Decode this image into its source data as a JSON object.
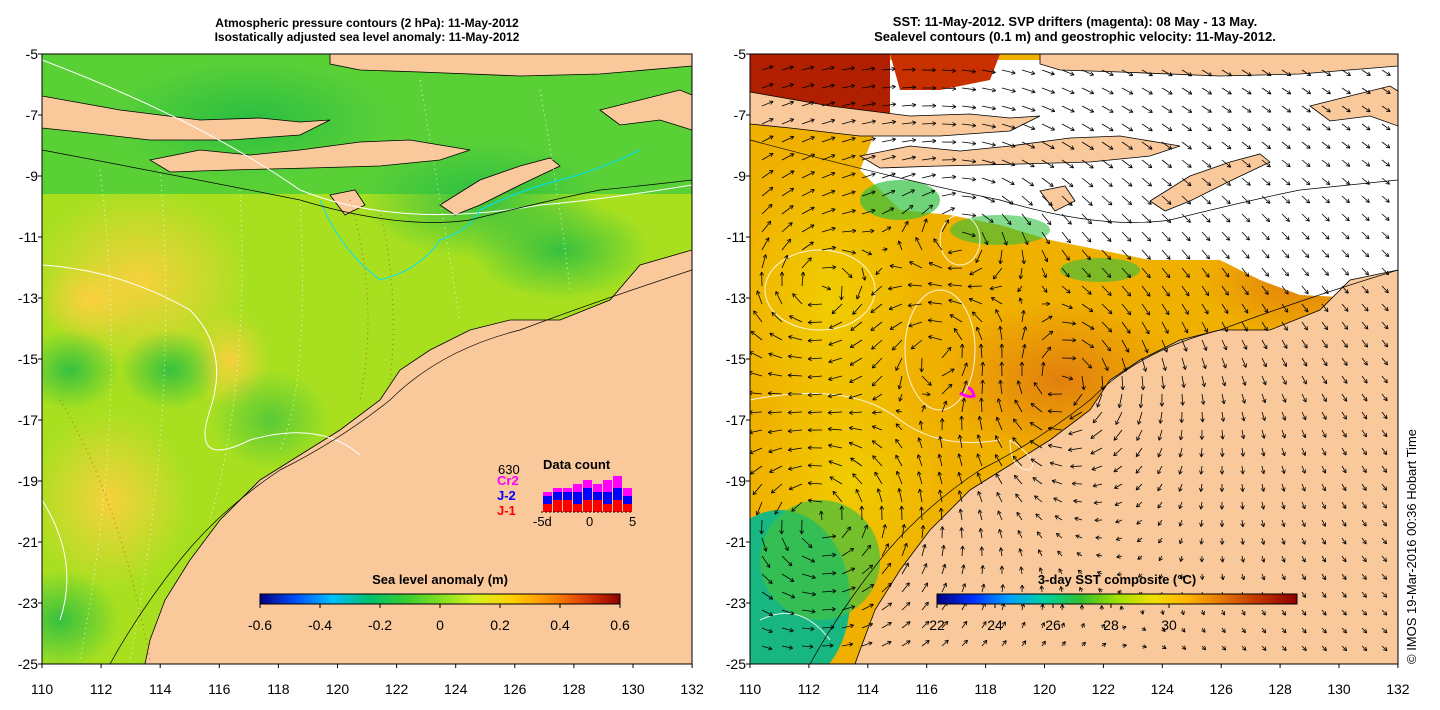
{
  "left_panel": {
    "title_line1": "Atmospheric pressure contours (2 hPa): 11-May-2012",
    "title_line2": "Isostatically adjusted sea level anomaly: 11-May-2012",
    "colorbar_title": "Sea level anomaly (m)",
    "colorbar_ticks": [
      "-0.6",
      "-0.4",
      "-0.2",
      "0",
      "0.2",
      "0.4",
      "0.6"
    ],
    "inset": {
      "title": "Data count",
      "count": "630",
      "legend": [
        {
          "label": "Cr2",
          "color": "#ff00ff"
        },
        {
          "label": "J-2",
          "color": "#0000ff"
        },
        {
          "label": "J-1",
          "color": "#ff0000"
        }
      ],
      "axis_ticks": [
        "-5d",
        "0",
        "5"
      ],
      "bars": [
        {
          "j1": 2,
          "j2": 4,
          "cr2": 5
        },
        {
          "j1": 3,
          "j2": 5,
          "cr2": 6
        },
        {
          "j1": 3,
          "j2": 5,
          "cr2": 6
        },
        {
          "j1": 2,
          "j2": 5,
          "cr2": 7
        },
        {
          "j1": 3,
          "j2": 6,
          "cr2": 8
        },
        {
          "j1": 3,
          "j2": 5,
          "cr2": 7
        },
        {
          "j1": 2,
          "j2": 5,
          "cr2": 8
        },
        {
          "j1": 3,
          "j2": 6,
          "cr2": 9
        },
        {
          "j1": 2,
          "j2": 4,
          "cr2": 6
        }
      ]
    }
  },
  "right_panel": {
    "title_line1": "SST: 11-May-2012. SVP drifters (magenta): 08 May - 13 May.",
    "title_line2": "Sealevel contours (0.1 m) and geostrophic velocity: 11-May-2012.",
    "colorbar_title": "3-day SST composite (°C)",
    "colorbar_ticks": [
      "22",
      "24",
      "26",
      "28",
      "30"
    ]
  },
  "axes": {
    "y_ticks": [
      "-5",
      "-7",
      "-9",
      "-11",
      "-13",
      "-15",
      "-17",
      "-19",
      "-21",
      "-23",
      "-25"
    ],
    "x_ticks": [
      "110",
      "112",
      "114",
      "116",
      "118",
      "120",
      "122",
      "124",
      "126",
      "128",
      "130",
      "132"
    ]
  },
  "credit": "© IMOS 19-Mar-2016 00:36 Hobart Time",
  "colors": {
    "land": "#f9c89b",
    "sla_scale": [
      "#00007f",
      "#0050ff",
      "#00bfff",
      "#00c070",
      "#33cc33",
      "#80e020",
      "#d8f020",
      "#ffd000",
      "#ff9000",
      "#e04000",
      "#900000"
    ],
    "sst_scale": [
      "#000080",
      "#0030ff",
      "#00a0ff",
      "#00d0a0",
      "#30c030",
      "#a0e000",
      "#f0e000",
      "#ffb000",
      "#e07000",
      "#c03000",
      "#8b0000"
    ]
  }
}
